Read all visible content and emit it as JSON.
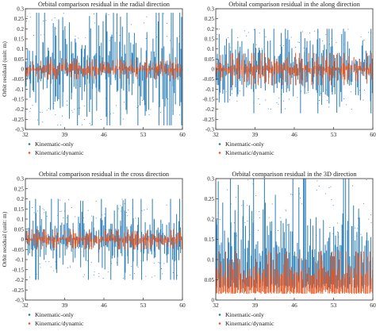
{
  "colors": {
    "kinematic_only": "#1f77b4",
    "kinematic_dynamic": "#e8541f",
    "axis": "#333333"
  },
  "chart_data": [
    {
      "type": "scatter",
      "title": "Orbital comparison residual in the radial direction",
      "ylabel": "Orbit residual (unit: m)",
      "xlabel": "",
      "xlim": [
        32,
        60
      ],
      "ylim": [
        -0.3,
        0.3
      ],
      "xticks": [
        32,
        39,
        46,
        53,
        60
      ],
      "yticks": [
        -0.3,
        -0.25,
        -0.2,
        -0.15,
        -0.1,
        -0.05,
        0,
        0.05,
        0.1,
        0.15,
        0.2,
        0.25,
        0.3
      ],
      "ytick_labels": [
        "-0.3",
        "-0.25",
        "-0.2",
        "-0.15",
        "-0.1",
        "-0.05",
        "0",
        "0.05",
        "0.1",
        "0.15",
        "0.2",
        "0.25",
        "0.3"
      ],
      "series": [
        {
          "name": "Kinematic-only",
          "color": "#1f77b4",
          "center": 0,
          "envelope": [
            -0.28,
            0.28
          ],
          "typical_spread": 0.09
        },
        {
          "name": "Kinematic/dynamic",
          "color": "#e8541f",
          "center": 0,
          "envelope": [
            -0.05,
            0.05
          ],
          "typical_spread": 0.02
        }
      ],
      "legend": "bottom-left"
    },
    {
      "type": "scatter",
      "title": "Orbital comparison residual in the along direction",
      "ylabel": "",
      "xlabel": "",
      "xlim": [
        32,
        60
      ],
      "ylim": [
        -0.3,
        0.3
      ],
      "xticks": [
        32,
        39,
        46,
        53,
        60
      ],
      "yticks": [
        -0.3,
        -0.25,
        -0.2,
        -0.15,
        -0.1,
        -0.05,
        0,
        0.05,
        0.1,
        0.15,
        0.2,
        0.25,
        0.3
      ],
      "ytick_labels": [
        "-0.3",
        "-0.25",
        "-0.2",
        "-0.15",
        "-0.1",
        "-0.05",
        "0",
        "0.05",
        "0.1",
        "0.15",
        "0.2",
        "0.25",
        "0.3"
      ],
      "series": [
        {
          "name": "Kinematic-only",
          "color": "#1f77b4",
          "center": 0,
          "envelope": [
            -0.22,
            0.2
          ],
          "typical_spread": 0.08
        },
        {
          "name": "Kinematic/dynamic",
          "color": "#e8541f",
          "center": 0,
          "envelope": [
            -0.08,
            0.08
          ],
          "typical_spread": 0.03
        }
      ],
      "legend": "bottom-left"
    },
    {
      "type": "scatter",
      "title": "Orbital comparison residual in the cross direction",
      "ylabel": "Orbit residual (unit: m)",
      "xlabel": "",
      "xlim": [
        32,
        60
      ],
      "ylim": [
        -0.3,
        0.3
      ],
      "xticks": [
        32,
        39,
        46,
        53,
        60
      ],
      "yticks": [
        -0.3,
        -0.25,
        -0.2,
        -0.15,
        -0.1,
        -0.05,
        0,
        0.05,
        0.1,
        0.15,
        0.2,
        0.25,
        0.3
      ],
      "ytick_labels": [
        "-0.3",
        "-0.25",
        "-0.2",
        "-0.15",
        "-0.1",
        "-0.05",
        "0",
        "0.05",
        "0.1",
        "0.15",
        "0.2",
        "0.25",
        "0.3"
      ],
      "series": [
        {
          "name": "Kinematic-only",
          "color": "#1f77b4",
          "center": 0,
          "envelope": [
            -0.2,
            0.2
          ],
          "typical_spread": 0.07
        },
        {
          "name": "Kinematic/dynamic",
          "color": "#e8541f",
          "center": 0,
          "envelope": [
            -0.05,
            0.05
          ],
          "typical_spread": 0.02
        }
      ],
      "legend": "bottom-left"
    },
    {
      "type": "scatter",
      "title": "Orbital comparison residual in the 3D direction",
      "ylabel": "",
      "xlabel": "",
      "xlim": [
        32,
        60
      ],
      "ylim": [
        0,
        0.3
      ],
      "xticks": [
        32,
        39,
        46,
        53,
        60
      ],
      "yticks": [
        0,
        0.05,
        0.1,
        0.15,
        0.2,
        0.25,
        0.3
      ],
      "ytick_labels": [
        "0",
        "0.05",
        "0.1",
        "0.15",
        "0.2",
        "0.25",
        "0.3"
      ],
      "series": [
        {
          "name": "Kinematic-only",
          "color": "#1f77b4",
          "center": 0.09,
          "envelope": [
            0,
            0.3
          ],
          "typical_spread": 0.06
        },
        {
          "name": "Kinematic/dynamic",
          "color": "#e8541f",
          "center": 0.05,
          "envelope": [
            0,
            0.12
          ],
          "typical_spread": 0.025
        }
      ],
      "legend": "bottom-left"
    }
  ]
}
